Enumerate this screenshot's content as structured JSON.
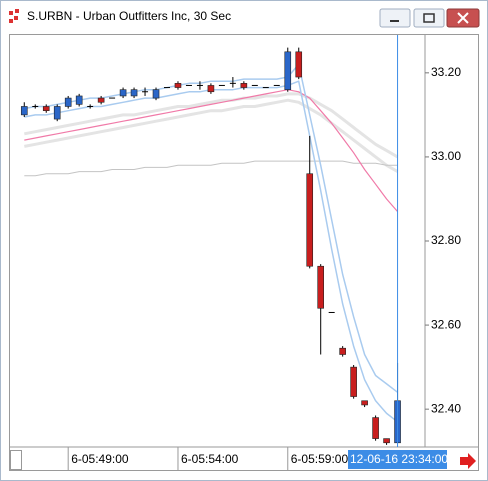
{
  "window": {
    "title": "S.URBN - Urban Outfitters Inc, 30 Sec"
  },
  "chart_data": {
    "type": "candlestick",
    "up_color": "#2a66c8",
    "down_color": "#c81e1e",
    "open": [
      33.1,
      33.12,
      33.12,
      33.09,
      33.12,
      33.125,
      33.12,
      33.14,
      33.14,
      33.145,
      33.145,
      33.155,
      33.14,
      33.165,
      33.175,
      33.17,
      33.17,
      33.17,
      33.17,
      33.175,
      33.175,
      33.17,
      33.165,
      33.17,
      33.16,
      33.25,
      32.96,
      32.74,
      32.63,
      32.545,
      32.5,
      32.42,
      32.38,
      32.33,
      32.32
    ],
    "high": [
      33.13,
      33.125,
      33.125,
      33.125,
      33.145,
      33.15,
      33.125,
      33.145,
      33.14,
      33.165,
      33.165,
      33.165,
      33.165,
      33.165,
      33.18,
      33.17,
      33.18,
      33.175,
      33.17,
      33.19,
      33.18,
      33.17,
      33.165,
      33.17,
      33.26,
      33.26,
      33.05,
      32.745,
      32.63,
      32.55,
      32.505,
      32.42,
      32.385,
      32.33,
      32.51
    ],
    "low": [
      33.095,
      33.115,
      33.105,
      33.085,
      33.115,
      33.12,
      33.115,
      33.125,
      33.14,
      33.14,
      33.14,
      33.145,
      33.135,
      33.165,
      33.16,
      33.17,
      33.16,
      33.15,
      33.17,
      33.165,
      33.16,
      33.17,
      33.165,
      33.17,
      33.155,
      33.185,
      32.735,
      32.53,
      32.63,
      32.525,
      32.425,
      32.405,
      32.325,
      32.315,
      32.32
    ],
    "close": [
      33.12,
      33.12,
      33.11,
      33.12,
      33.14,
      33.145,
      33.12,
      33.13,
      33.14,
      33.16,
      33.16,
      33.155,
      33.16,
      33.165,
      33.165,
      33.17,
      33.17,
      33.155,
      33.17,
      33.175,
      33.165,
      33.17,
      33.165,
      33.17,
      33.25,
      33.19,
      32.74,
      32.64,
      32.63,
      32.53,
      32.43,
      32.41,
      32.33,
      32.32,
      32.42
    ],
    "lines": [
      {
        "color": "#e4e4e4",
        "width": 3,
        "values": [
          33.055,
          33.06,
          33.065,
          33.07,
          33.075,
          33.08,
          33.085,
          33.09,
          33.095,
          33.1,
          33.1,
          33.105,
          33.11,
          33.115,
          33.12,
          33.12,
          33.125,
          33.13,
          33.135,
          33.135,
          33.14,
          33.14,
          33.145,
          33.145,
          33.15,
          33.15,
          33.14,
          33.125,
          33.11,
          33.09,
          33.07,
          33.05,
          33.03,
          33.015,
          33.0
        ]
      },
      {
        "color": "#e4e4e4",
        "width": 3,
        "values": [
          33.025,
          33.03,
          33.035,
          33.04,
          33.045,
          33.05,
          33.055,
          33.06,
          33.065,
          33.07,
          33.075,
          33.08,
          33.085,
          33.09,
          33.095,
          33.1,
          33.105,
          33.11,
          33.11,
          33.115,
          33.12,
          33.12,
          33.125,
          33.13,
          33.135,
          33.13,
          33.115,
          33.1,
          33.08,
          33.06,
          33.04,
          33.02,
          33.0,
          32.98,
          32.965
        ]
      },
      {
        "color": "#c4c4c4",
        "width": 1,
        "values": [
          32.955,
          32.955,
          32.96,
          32.96,
          32.96,
          32.965,
          32.965,
          32.965,
          32.97,
          32.97,
          32.97,
          32.975,
          32.975,
          32.975,
          32.98,
          32.98,
          32.98,
          32.98,
          32.985,
          32.985,
          32.985,
          32.99,
          32.99,
          32.99,
          32.99,
          32.99,
          32.99,
          32.99,
          32.99,
          32.99,
          32.985,
          32.985,
          32.985,
          32.98,
          32.98
        ]
      },
      {
        "color": "#f07aa8",
        "width": 1.2,
        "values": [
          33.04,
          33.045,
          33.05,
          33.055,
          33.06,
          33.065,
          33.07,
          33.075,
          33.08,
          33.085,
          33.09,
          33.095,
          33.1,
          33.105,
          33.11,
          33.115,
          33.12,
          33.125,
          33.13,
          33.135,
          33.14,
          33.145,
          33.15,
          33.155,
          33.16,
          33.155,
          33.14,
          33.11,
          33.08,
          33.045,
          33.01,
          32.97,
          32.935,
          32.9,
          32.87
        ]
      },
      {
        "color": "#a9cbef",
        "width": 1.5,
        "values": [
          33.115,
          33.12,
          33.12,
          33.125,
          33.13,
          33.135,
          33.14,
          33.14,
          33.145,
          33.15,
          33.155,
          33.16,
          33.16,
          33.165,
          33.17,
          33.175,
          33.175,
          33.18,
          33.18,
          33.18,
          33.185,
          33.185,
          33.185,
          33.185,
          33.19,
          33.22,
          33.1,
          32.98,
          32.85,
          32.72,
          32.62,
          32.53,
          32.48,
          32.46,
          32.44
        ]
      },
      {
        "color": "#a9cbef",
        "width": 1.5,
        "values": [
          33.095,
          33.1,
          33.1,
          33.105,
          33.11,
          33.115,
          33.12,
          33.12,
          33.125,
          33.13,
          33.135,
          33.14,
          33.14,
          33.145,
          33.15,
          33.155,
          33.155,
          33.16,
          33.16,
          33.16,
          33.165,
          33.165,
          33.165,
          33.165,
          33.17,
          33.18,
          33.05,
          32.92,
          32.78,
          32.65,
          32.55,
          32.47,
          32.42,
          32.39,
          32.37
        ]
      }
    ],
    "xlim": [
      -1.3,
      36.5
    ],
    "xticks": [
      {
        "value": 4,
        "label": "6-05:49:00"
      },
      {
        "value": 14,
        "label": "6-05:54:00"
      },
      {
        "value": 24,
        "label": "6-05:59:00"
      }
    ],
    "ylim": [
      32.31,
      33.29
    ],
    "yticks": [
      {
        "value": 33.2,
        "label": "33.20"
      },
      {
        "value": 33.0,
        "label": "33.00"
      },
      {
        "value": 32.8,
        "label": "32.80"
      },
      {
        "value": 32.6,
        "label": "32.60"
      },
      {
        "value": 32.4,
        "label": "32.40"
      }
    ],
    "cursor": {
      "value": 34,
      "label": "12-06-16 23:34:00",
      "color": "#3c8ce6"
    }
  }
}
